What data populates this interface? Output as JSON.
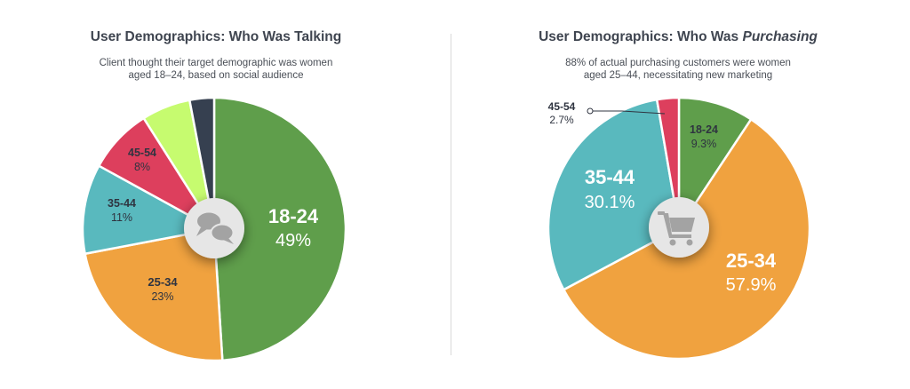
{
  "colors": {
    "green": "#5f9e4b",
    "orange": "#f0a23f",
    "teal": "#59b9be",
    "red": "#dd3f5d",
    "lime": "#c6fb6f",
    "navy": "#364050",
    "hub": "#e6e6e6",
    "hub_icon": "#a3a3a3",
    "divider": "#d9d9d9"
  },
  "left": {
    "title": "User Demographics: Who Was Talking",
    "subtitle_line1": "Client thought their target demographic was women",
    "subtitle_line2": "aged 18–24, based on social audience",
    "hub_icon": "chat-bubbles-icon"
  },
  "right": {
    "title_prefix": "User Demographics: Who Was ",
    "title_emphasis": "Purchasing",
    "subtitle_line1": "88% of actual purchasing customers were women",
    "subtitle_line2": "aged 25–44, necessitating new marketing",
    "hub_icon": "shopping-cart-icon"
  },
  "chart_data": [
    {
      "type": "pie",
      "title": "User Demographics: Who Was Talking",
      "slices": [
        {
          "label": "18-24",
          "value": 49,
          "display": "49%",
          "color": "#5f9e4b"
        },
        {
          "label": "25-34",
          "value": 23,
          "display": "23%",
          "color": "#f0a23f"
        },
        {
          "label": "35-44",
          "value": 11,
          "display": "11%",
          "color": "#59b9be"
        },
        {
          "label": "45-54",
          "value": 8,
          "display": "8%",
          "color": "#dd3f5d"
        },
        {
          "label": "",
          "value": 6,
          "display": "",
          "color": "#c6fb6f"
        },
        {
          "label": "",
          "value": 3,
          "display": "",
          "color": "#364050"
        }
      ]
    },
    {
      "type": "pie",
      "title": "User Demographics: Who Was Purchasing",
      "slices": [
        {
          "label": "18-24",
          "value": 9.3,
          "display": "9.3%",
          "color": "#5f9e4b"
        },
        {
          "label": "25-34",
          "value": 57.9,
          "display": "57.9%",
          "color": "#f0a23f"
        },
        {
          "label": "35-44",
          "value": 30.1,
          "display": "30.1%",
          "color": "#59b9be"
        },
        {
          "label": "45-54",
          "value": 2.7,
          "display": "2.7%",
          "color": "#dd3f5d"
        }
      ]
    }
  ]
}
